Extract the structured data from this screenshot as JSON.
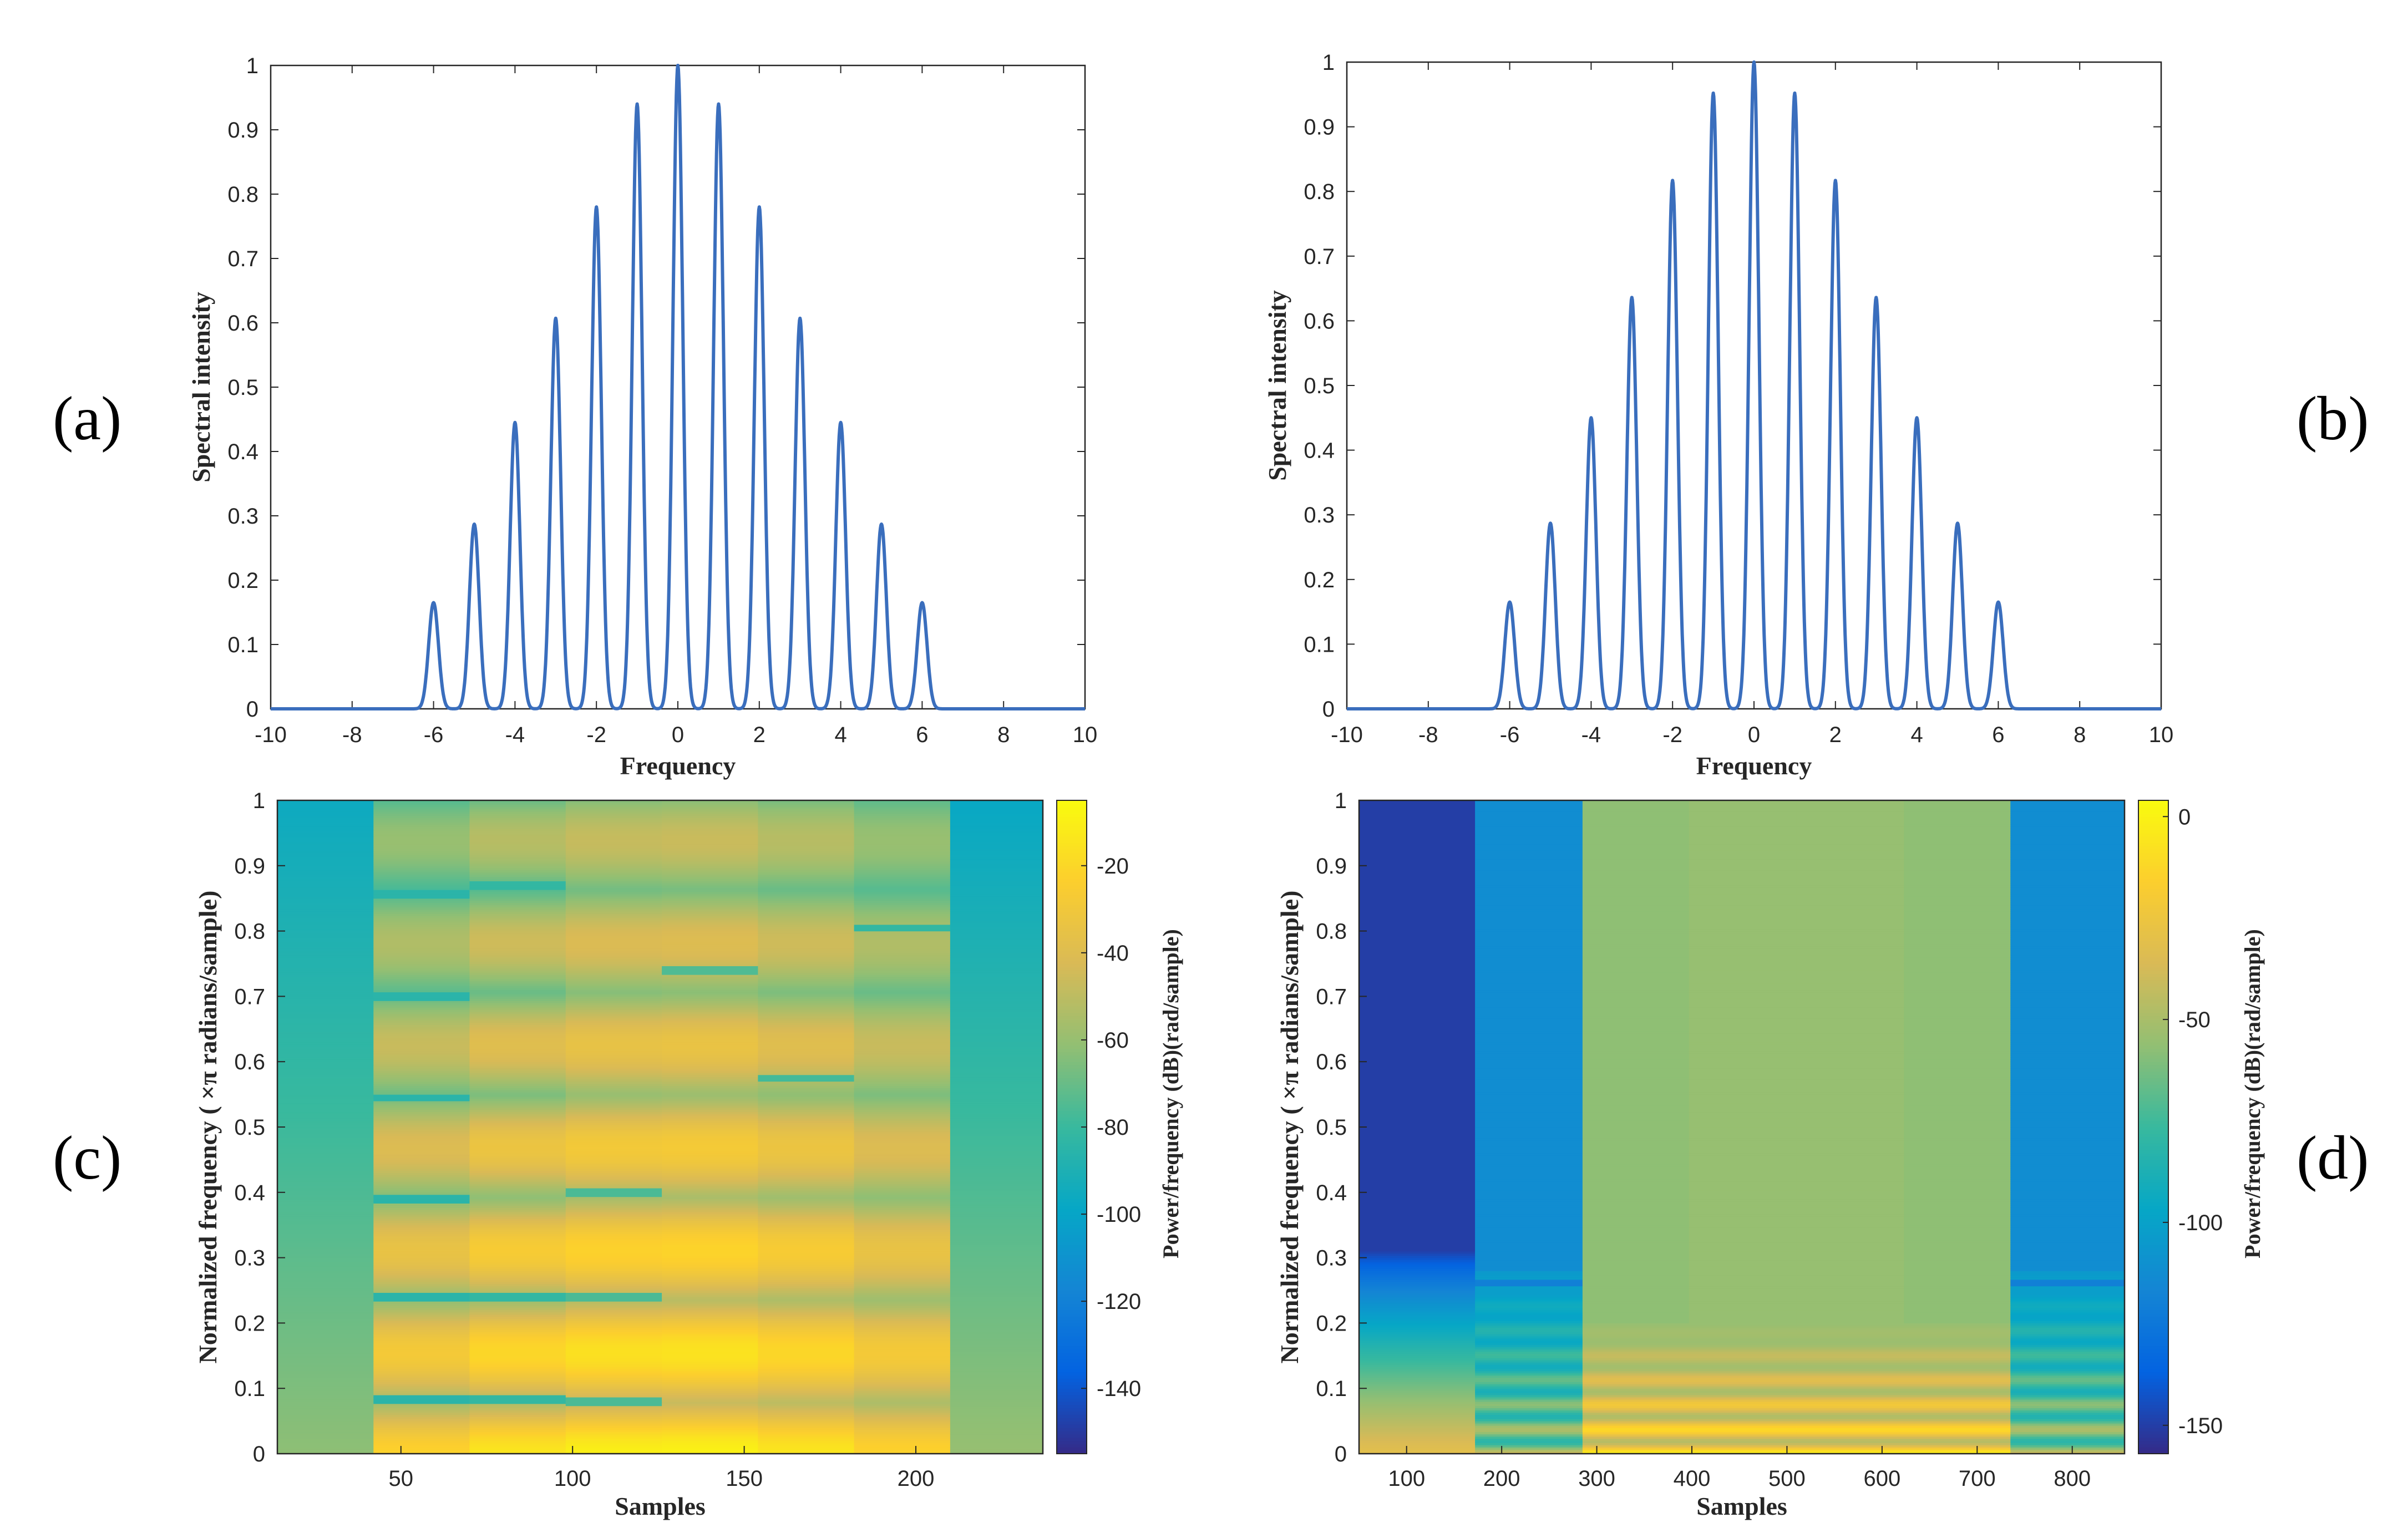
{
  "colors": {
    "line": "#3a6ebd",
    "axis": "#262626",
    "parula": [
      "#352a87",
      "#0363e1",
      "#1485d4",
      "#06a7c6",
      "#38b99e",
      "#92bf73",
      "#d9ba56",
      "#fcce2e",
      "#f9fb0e"
    ]
  },
  "chart_data": [
    {
      "id": "a",
      "panel_label": "(a)",
      "type": "line",
      "title": "",
      "xlabel": "Frequency",
      "ylabel": "Spectral intensity",
      "xlim": [
        -10,
        10
      ],
      "ylim": [
        0,
        1
      ],
      "xticks": [
        "-10",
        "-8",
        "-6",
        "-4",
        "-2",
        "0",
        "2",
        "4",
        "6",
        "8",
        "10"
      ],
      "yticks": [
        "0",
        "0.1",
        "0.2",
        "0.3",
        "0.4",
        "0.5",
        "0.6",
        "0.7",
        "0.8",
        "0.9",
        "1"
      ],
      "peak_width": 0.12,
      "peaks": [
        {
          "x": -6,
          "y": 0.165
        },
        {
          "x": -5,
          "y": 0.287
        },
        {
          "x": -4,
          "y": 0.445
        },
        {
          "x": -3,
          "y": 0.607
        },
        {
          "x": -2,
          "y": 0.78
        },
        {
          "x": -1,
          "y": 0.94
        },
        {
          "x": 0,
          "y": 1.0
        },
        {
          "x": 1,
          "y": 0.94
        },
        {
          "x": 2,
          "y": 0.78
        },
        {
          "x": 3,
          "y": 0.607
        },
        {
          "x": 4,
          "y": 0.445
        },
        {
          "x": 5,
          "y": 0.287
        },
        {
          "x": 6,
          "y": 0.165
        }
      ]
    },
    {
      "id": "b",
      "panel_label": "(b)",
      "type": "line",
      "title": "",
      "xlabel": "Frequency",
      "ylabel": "Spectral intensity",
      "xlim": [
        -10,
        10
      ],
      "ylim": [
        0,
        1
      ],
      "xticks": [
        "-10",
        "-8",
        "-6",
        "-4",
        "-2",
        "0",
        "2",
        "4",
        "6",
        "8",
        "10"
      ],
      "yticks": [
        "0",
        "0.1",
        "0.2",
        "0.3",
        "0.4",
        "0.5",
        "0.6",
        "0.7",
        "0.8",
        "0.9",
        "1"
      ],
      "peak_width": 0.12,
      "peaks": [
        {
          "x": -6,
          "y": 0.165
        },
        {
          "x": -5,
          "y": 0.287
        },
        {
          "x": -4,
          "y": 0.45
        },
        {
          "x": -3,
          "y": 0.636
        },
        {
          "x": -2,
          "y": 0.817
        },
        {
          "x": -1,
          "y": 0.952
        },
        {
          "x": 0,
          "y": 1.0
        },
        {
          "x": 1,
          "y": 0.952
        },
        {
          "x": 2,
          "y": 0.817
        },
        {
          "x": 3,
          "y": 0.636
        },
        {
          "x": 4,
          "y": 0.45
        },
        {
          "x": 5,
          "y": 0.287
        },
        {
          "x": 6,
          "y": 0.165
        }
      ]
    },
    {
      "id": "c",
      "panel_label": "(c)",
      "type": "heatmap",
      "title": "",
      "xlabel": "Samples",
      "ylabel": "Normalized frequency  ( ×π radians/sample)",
      "xlim": [
        14,
        237
      ],
      "ylim": [
        0,
        1
      ],
      "xticks": [
        {
          "v": 50,
          "label": "50"
        },
        {
          "v": 100,
          "label": "100"
        },
        {
          "v": 150,
          "label": "150"
        },
        {
          "v": 200,
          "label": "200"
        }
      ],
      "yticks": [
        "0",
        "0.1",
        "0.2",
        "0.3",
        "0.4",
        "0.5",
        "0.6",
        "0.7",
        "0.8",
        "0.9",
        "1"
      ],
      "colorbar": {
        "label": "Power/frequency (dB)(rad/sample)",
        "range": [
          -155,
          -5
        ],
        "ticks": [
          "-20",
          "-40",
          "-60",
          "-80",
          "-100",
          "-120",
          "-140"
        ]
      },
      "columns": [
        {
          "x0": 14,
          "x1": 42,
          "base": -96,
          "top": -62,
          "bands": 0,
          "floor": -70,
          "lines": []
        },
        {
          "x0": 42,
          "x1": 70,
          "base": -72,
          "top": -22,
          "bands": 1,
          "floor": -55,
          "lines": [
            0.083,
            0.24,
            0.39,
            0.545,
            0.7,
            0.857
          ]
        },
        {
          "x0": 70,
          "x1": 98,
          "base": -67,
          "top": -14,
          "bands": 1,
          "floor": -52,
          "lines": [
            0.083,
            0.24,
            0.87
          ]
        },
        {
          "x0": 98,
          "x1": 126,
          "base": -60,
          "top": -10,
          "bands": 1,
          "floor": -46,
          "lines": [
            0.08,
            0.24,
            0.4
          ]
        },
        {
          "x0": 126,
          "x1": 154,
          "base": -60,
          "top": -9,
          "bands": 1,
          "floor": -45,
          "lines": [
            0.74
          ]
        },
        {
          "x0": 154,
          "x1": 182,
          "base": -62,
          "top": -14,
          "bands": 1,
          "floor": -48,
          "lines": [
            0.575
          ]
        },
        {
          "x0": 182,
          "x1": 210,
          "base": -64,
          "top": -22,
          "bands": 1,
          "floor": -52,
          "lines": [
            0.805
          ]
        },
        {
          "x0": 210,
          "x1": 237,
          "base": -98,
          "top": -60,
          "bands": 0,
          "floor": -70,
          "lines": []
        }
      ]
    },
    {
      "id": "d",
      "panel_label": "(d)",
      "type": "heatmap",
      "title": "",
      "xlabel": "Samples",
      "ylabel": "Normalized frequency  ( ×π radians/sample)",
      "xlim": [
        50,
        855
      ],
      "ylim": [
        0,
        1
      ],
      "xticks": [
        {
          "v": 100,
          "label": "100"
        },
        {
          "v": 200,
          "label": "200"
        },
        {
          "v": 300,
          "label": "300"
        },
        {
          "v": 400,
          "label": "400"
        },
        {
          "v": 500,
          "label": "500"
        },
        {
          "v": 600,
          "label": "600"
        },
        {
          "v": 700,
          "label": "700"
        },
        {
          "v": 800,
          "label": "800"
        }
      ],
      "yticks": [
        "0",
        "0.1",
        "0.2",
        "0.3",
        "0.4",
        "0.5",
        "0.6",
        "0.7",
        "0.8",
        "0.9",
        "1"
      ],
      "colorbar": {
        "label": "Power/frequency (dB)(rad/sample)",
        "range": [
          -157,
          4
        ],
        "ticks": [
          "0",
          "-50",
          "-100",
          "-150"
        ]
      },
      "columns": [
        {
          "x0": 50,
          "x1": 172,
          "kind": "ramp",
          "level": -150,
          "knee": 0.31,
          "low": -30
        },
        {
          "x0": 172,
          "x1": 285,
          "kind": "edge",
          "level": -112,
          "knee": 0.28
        },
        {
          "x0": 285,
          "x1": 397,
          "kind": "mid",
          "level": -57,
          "knee": 0.2
        },
        {
          "x0": 397,
          "x1": 510,
          "kind": "mid",
          "level": -55,
          "knee": 0.2
        },
        {
          "x0": 510,
          "x1": 623,
          "kind": "mid",
          "level": -55,
          "knee": 0.2
        },
        {
          "x0": 623,
          "x1": 735,
          "kind": "mid",
          "level": -57,
          "knee": 0.2
        },
        {
          "x0": 735,
          "x1": 855,
          "kind": "edge",
          "level": -112,
          "knee": 0.28
        }
      ]
    }
  ]
}
